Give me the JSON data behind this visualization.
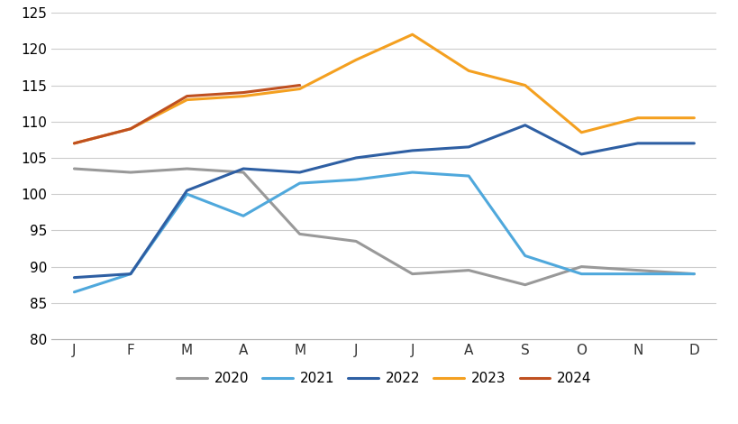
{
  "months": [
    "J",
    "F",
    "M",
    "A",
    "M",
    "J",
    "J",
    "A",
    "S",
    "O",
    "N",
    "D"
  ],
  "series": {
    "2020": [
      103.5,
      103.0,
      103.5,
      103.0,
      94.5,
      93.5,
      89.0,
      89.5,
      87.5,
      90.0,
      89.5,
      89.0
    ],
    "2021": [
      86.5,
      89.0,
      100.0,
      97.0,
      101.5,
      102.0,
      103.0,
      102.5,
      91.5,
      89.0,
      89.0,
      89.0
    ],
    "2022": [
      88.5,
      89.0,
      100.5,
      103.5,
      103.0,
      105.0,
      106.0,
      106.5,
      109.5,
      105.5,
      107.0,
      107.0
    ],
    "2023": [
      107.0,
      109.0,
      113.0,
      113.5,
      114.5,
      118.5,
      122.0,
      117.0,
      115.0,
      108.5,
      110.5,
      110.5
    ],
    "2024": [
      107.0,
      109.0,
      113.5,
      114.0,
      115.0,
      null,
      null,
      null,
      null,
      null,
      null,
      null
    ]
  },
  "colors": {
    "2020": "#999999",
    "2021": "#4FA8DC",
    "2022": "#2E5FA3",
    "2023": "#F4A020",
    "2024": "#BF5020"
  },
  "ylim": [
    80,
    125
  ],
  "yticks": [
    80,
    85,
    90,
    95,
    100,
    105,
    110,
    115,
    120,
    125
  ],
  "background_color": "#ffffff",
  "grid_color": "#cccccc",
  "linewidth": 2.2
}
